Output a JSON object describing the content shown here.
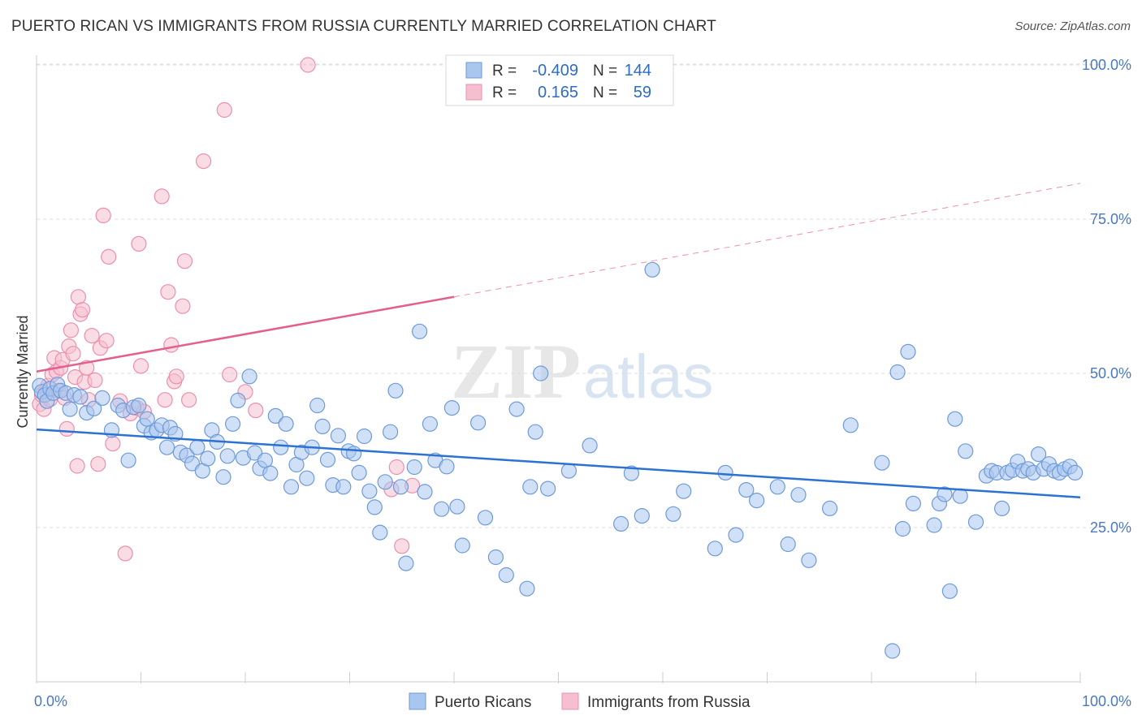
{
  "title": "PUERTO RICAN VS IMMIGRANTS FROM RUSSIA CURRENTLY MARRIED CORRELATION CHART",
  "source": "Source: ZipAtlas.com",
  "watermark": {
    "zip": "ZIP",
    "atlas": "atlas"
  },
  "colors": {
    "blue_fill": "#a9c6ee",
    "blue_stroke": "#6f9ad8",
    "blue_line": "#2b72d2",
    "pink_fill": "#f6bfd0",
    "pink_stroke": "#ec8fae",
    "pink_line": "#e4608c",
    "axis_text": "#4a78c2",
    "grid": "#dddddd"
  },
  "legend": {
    "r_label": "R =",
    "n_label": "N =",
    "rows": [
      {
        "r": "-0.409",
        "n": "144",
        "series": "blue"
      },
      {
        "r": "0.165",
        "n": "59",
        "series": "pink"
      }
    ]
  },
  "chart_data": {
    "type": "scatter",
    "title": "PUERTO RICAN VS IMMIGRANTS FROM RUSSIA CURRENTLY MARRIED CORRELATION CHART",
    "xlabel": "",
    "ylabel": "Currently Married",
    "xlim": [
      0,
      100
    ],
    "ylim": [
      0,
      105
    ],
    "x_tick_labels": [
      {
        "value": 0,
        "label": "0.0%"
      },
      {
        "value": 100,
        "label": "100.0%"
      }
    ],
    "y_tick_labels": [
      {
        "value": 25,
        "label": "25.0%"
      },
      {
        "value": 50,
        "label": "50.0%"
      },
      {
        "value": 75,
        "label": "75.0%"
      },
      {
        "value": 100,
        "label": "100.0%"
      }
    ],
    "grid": true,
    "legend_position": "top-center",
    "series": [
      {
        "name": "Puerto Ricans",
        "color": "blue",
        "r": -0.409,
        "n": 144,
        "trend": {
          "x": [
            0,
            100
          ],
          "y": [
            40.9,
            29.9
          ],
          "dashed_from": null
        },
        "points": [
          [
            0.3,
            48.0
          ],
          [
            0.5,
            47.0
          ],
          [
            0.8,
            46.5
          ],
          [
            1.0,
            45.5
          ],
          [
            1.3,
            47.5
          ],
          [
            1.6,
            46.8
          ],
          [
            2.0,
            48.2
          ],
          [
            2.3,
            47.2
          ],
          [
            2.8,
            46.8
          ],
          [
            3.2,
            44.2
          ],
          [
            3.6,
            46.5
          ],
          [
            4.2,
            46.2
          ],
          [
            4.8,
            43.6
          ],
          [
            5.5,
            44.3
          ],
          [
            6.3,
            46.0
          ],
          [
            7.2,
            40.8
          ],
          [
            7.8,
            44.8
          ],
          [
            8.3,
            44.0
          ],
          [
            8.8,
            35.9
          ],
          [
            9.3,
            44.5
          ],
          [
            9.8,
            44.8
          ],
          [
            10.3,
            41.5
          ],
          [
            10.6,
            42.6
          ],
          [
            11.0,
            40.4
          ],
          [
            11.5,
            40.8
          ],
          [
            12.0,
            41.6
          ],
          [
            12.5,
            38.0
          ],
          [
            12.8,
            41.2
          ],
          [
            13.3,
            40.2
          ],
          [
            13.8,
            37.2
          ],
          [
            14.4,
            36.7
          ],
          [
            14.9,
            35.4
          ],
          [
            15.4,
            38.0
          ],
          [
            15.9,
            34.2
          ],
          [
            16.4,
            36.2
          ],
          [
            16.8,
            40.8
          ],
          [
            17.3,
            38.9
          ],
          [
            17.9,
            33.2
          ],
          [
            18.3,
            36.6
          ],
          [
            18.8,
            41.8
          ],
          [
            19.3,
            45.6
          ],
          [
            19.8,
            36.3
          ],
          [
            20.4,
            49.5
          ],
          [
            20.9,
            37.1
          ],
          [
            21.4,
            34.6
          ],
          [
            21.9,
            35.9
          ],
          [
            22.4,
            33.8
          ],
          [
            22.9,
            43.1
          ],
          [
            23.4,
            38.0
          ],
          [
            23.9,
            41.8
          ],
          [
            24.4,
            31.6
          ],
          [
            24.9,
            35.2
          ],
          [
            25.4,
            37.2
          ],
          [
            25.9,
            33.0
          ],
          [
            26.4,
            38.0
          ],
          [
            26.9,
            44.8
          ],
          [
            27.4,
            41.4
          ],
          [
            27.9,
            36.0
          ],
          [
            28.4,
            31.9
          ],
          [
            28.9,
            39.9
          ],
          [
            29.4,
            31.6
          ],
          [
            29.9,
            37.4
          ],
          [
            30.4,
            37.0
          ],
          [
            30.9,
            33.9
          ],
          [
            31.4,
            39.8
          ],
          [
            31.9,
            30.9
          ],
          [
            32.4,
            28.3
          ],
          [
            32.9,
            24.2
          ],
          [
            33.4,
            32.4
          ],
          [
            33.9,
            40.5
          ],
          [
            34.4,
            47.2
          ],
          [
            34.9,
            31.6
          ],
          [
            35.4,
            19.2
          ],
          [
            36.2,
            34.8
          ],
          [
            36.7,
            56.8
          ],
          [
            37.2,
            30.8
          ],
          [
            37.7,
            41.8
          ],
          [
            38.2,
            35.9
          ],
          [
            38.8,
            28.0
          ],
          [
            39.3,
            34.9
          ],
          [
            39.8,
            44.4
          ],
          [
            40.3,
            28.4
          ],
          [
            40.8,
            22.1
          ],
          [
            42.3,
            42.0
          ],
          [
            43.0,
            26.6
          ],
          [
            44.0,
            20.2
          ],
          [
            45.0,
            17.3
          ],
          [
            46.0,
            44.2
          ],
          [
            47.0,
            15.1
          ],
          [
            47.3,
            31.6
          ],
          [
            47.8,
            40.5
          ],
          [
            48.3,
            50.0
          ],
          [
            49.0,
            31.3
          ],
          [
            51.0,
            34.2
          ],
          [
            53.0,
            38.3
          ],
          [
            56.0,
            25.6
          ],
          [
            57.0,
            33.8
          ],
          [
            58.0,
            26.9
          ],
          [
            59.0,
            66.8
          ],
          [
            61.0,
            27.2
          ],
          [
            62.0,
            30.9
          ],
          [
            65.0,
            21.6
          ],
          [
            66.0,
            33.9
          ],
          [
            67.0,
            23.8
          ],
          [
            68.0,
            31.1
          ],
          [
            69.0,
            29.4
          ],
          [
            71.0,
            31.6
          ],
          [
            72.0,
            22.3
          ],
          [
            73.0,
            30.3
          ],
          [
            74.0,
            19.7
          ],
          [
            76.0,
            28.1
          ],
          [
            78.0,
            41.6
          ],
          [
            81.0,
            35.5
          ],
          [
            82.0,
            5.0
          ],
          [
            82.5,
            50.2
          ],
          [
            83.0,
            24.8
          ],
          [
            83.5,
            53.5
          ],
          [
            84.0,
            28.9
          ],
          [
            86.0,
            25.4
          ],
          [
            86.5,
            28.9
          ],
          [
            87.0,
            30.4
          ],
          [
            87.5,
            14.7
          ],
          [
            88.0,
            42.6
          ],
          [
            88.5,
            30.1
          ],
          [
            89.0,
            37.4
          ],
          [
            90.0,
            25.9
          ],
          [
            91.0,
            33.4
          ],
          [
            91.5,
            34.2
          ],
          [
            92.0,
            33.9
          ],
          [
            92.5,
            28.1
          ],
          [
            93.0,
            33.9
          ],
          [
            93.5,
            34.3
          ],
          [
            94.0,
            35.7
          ],
          [
            94.5,
            34.2
          ],
          [
            95.0,
            34.5
          ],
          [
            95.5,
            33.9
          ],
          [
            96.0,
            36.9
          ],
          [
            96.5,
            34.5
          ],
          [
            97.0,
            35.3
          ],
          [
            97.5,
            34.2
          ],
          [
            98.0,
            33.9
          ],
          [
            98.5,
            34.5
          ],
          [
            99.0,
            34.9
          ],
          [
            99.5,
            33.9
          ]
        ]
      },
      {
        "name": "Immigrants from Russia",
        "color": "pink",
        "r": 0.165,
        "n": 59,
        "trend": {
          "x": [
            0,
            40,
            100
          ],
          "y": [
            50.3,
            62.4,
            80.8
          ],
          "dashed_from": 40
        },
        "points": [
          [
            0.3,
            45.0
          ],
          [
            0.5,
            46.5
          ],
          [
            0.7,
            44.2
          ],
          [
            0.9,
            47.3
          ],
          [
            1.1,
            48.0
          ],
          [
            1.3,
            45.8
          ],
          [
            1.5,
            49.8
          ],
          [
            1.7,
            52.5
          ],
          [
            1.9,
            50.3
          ],
          [
            2.1,
            47.2
          ],
          [
            2.3,
            50.9
          ],
          [
            2.5,
            52.2
          ],
          [
            2.7,
            46.0
          ],
          [
            2.9,
            41.0
          ],
          [
            3.1,
            54.4
          ],
          [
            3.3,
            57.0
          ],
          [
            3.5,
            53.2
          ],
          [
            3.7,
            49.4
          ],
          [
            3.9,
            35.0
          ],
          [
            4.0,
            62.4
          ],
          [
            4.2,
            59.6
          ],
          [
            4.4,
            60.3
          ],
          [
            4.6,
            48.6
          ],
          [
            4.8,
            50.9
          ],
          [
            5.0,
            45.7
          ],
          [
            5.3,
            56.1
          ],
          [
            5.6,
            48.9
          ],
          [
            5.9,
            35.3
          ],
          [
            6.1,
            54.1
          ],
          [
            6.4,
            75.6
          ],
          [
            6.7,
            55.3
          ],
          [
            6.9,
            68.9
          ],
          [
            7.3,
            38.6
          ],
          [
            8.0,
            45.5
          ],
          [
            8.5,
            20.8
          ],
          [
            9.0,
            43.5
          ],
          [
            9.6,
            44.4
          ],
          [
            9.8,
            71.0
          ],
          [
            10.0,
            51.2
          ],
          [
            10.3,
            43.8
          ],
          [
            12.0,
            78.7
          ],
          [
            12.3,
            45.7
          ],
          [
            12.6,
            63.2
          ],
          [
            12.9,
            54.6
          ],
          [
            13.2,
            48.7
          ],
          [
            13.4,
            49.5
          ],
          [
            14.0,
            60.9
          ],
          [
            14.2,
            68.2
          ],
          [
            14.6,
            45.7
          ],
          [
            16.0,
            84.4
          ],
          [
            18.0,
            92.7
          ],
          [
            18.5,
            49.8
          ],
          [
            20.0,
            47.0
          ],
          [
            21.0,
            44.0
          ],
          [
            26.0,
            100.0
          ],
          [
            34.0,
            31.2
          ],
          [
            34.5,
            34.8
          ],
          [
            35.0,
            22.0
          ],
          [
            36.0,
            31.8
          ]
        ]
      }
    ]
  }
}
